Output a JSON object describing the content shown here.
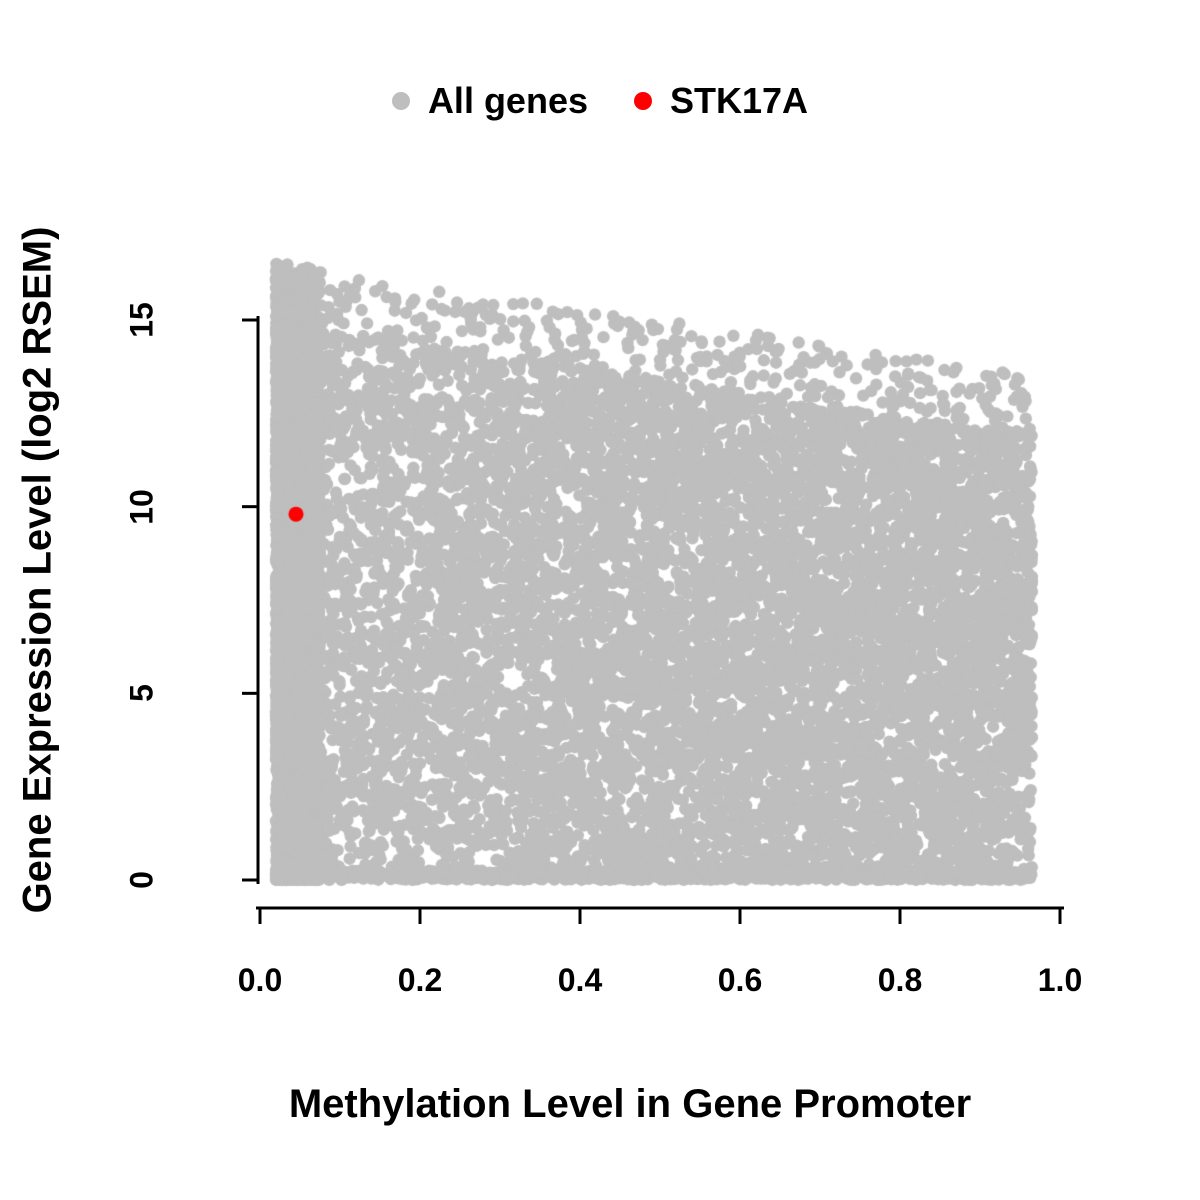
{
  "chart_data": {
    "type": "scatter",
    "title": "",
    "xlabel": "Methylation Level in Gene Promoter",
    "ylabel": "Gene Expression Level (log2 RSEM)",
    "xlim": [
      0.0,
      1.0
    ],
    "ylim": [
      0,
      16.5
    ],
    "grid": false,
    "background": "#FFFFFF",
    "axis_color": "#000000",
    "x_ticks": [
      "0.0",
      "0.2",
      "0.4",
      "0.6",
      "0.8",
      "1.0"
    ],
    "x_tick_values": [
      0.0,
      0.2,
      0.4,
      0.6,
      0.8,
      1.0
    ],
    "y_ticks": [
      "0",
      "5",
      "10",
      "15"
    ],
    "y_tick_values": [
      0,
      5,
      10,
      15
    ],
    "legend_position": "top-center",
    "legend": [
      {
        "label": "All genes",
        "color": "#BEBEBE"
      },
      {
        "label": "STK17A",
        "color": "#FF0000"
      }
    ],
    "series": [
      {
        "name": "All genes",
        "color": "#BEBEBE",
        "marker": "filled-circle",
        "marker_radius_px": 6.2,
        "generator": {
          "n": 15000,
          "seed": 1234567,
          "x_range": [
            0.02,
            0.965
          ],
          "left_column_frac": 0.3,
          "left_column_width": 0.055,
          "envelope_intercept": 15.0,
          "envelope_slope": -3.2,
          "fringe_frac": 0.03,
          "fringe_height": 1.6,
          "floor_frac": 0.1,
          "y_floor": 0,
          "y_max": 16.5
        }
      },
      {
        "name": "STK17A",
        "color": "#FF0000",
        "marker": "filled-circle",
        "marker_radius_px": 7.5,
        "points": [
          [
            0.045,
            9.8
          ]
        ]
      }
    ]
  }
}
